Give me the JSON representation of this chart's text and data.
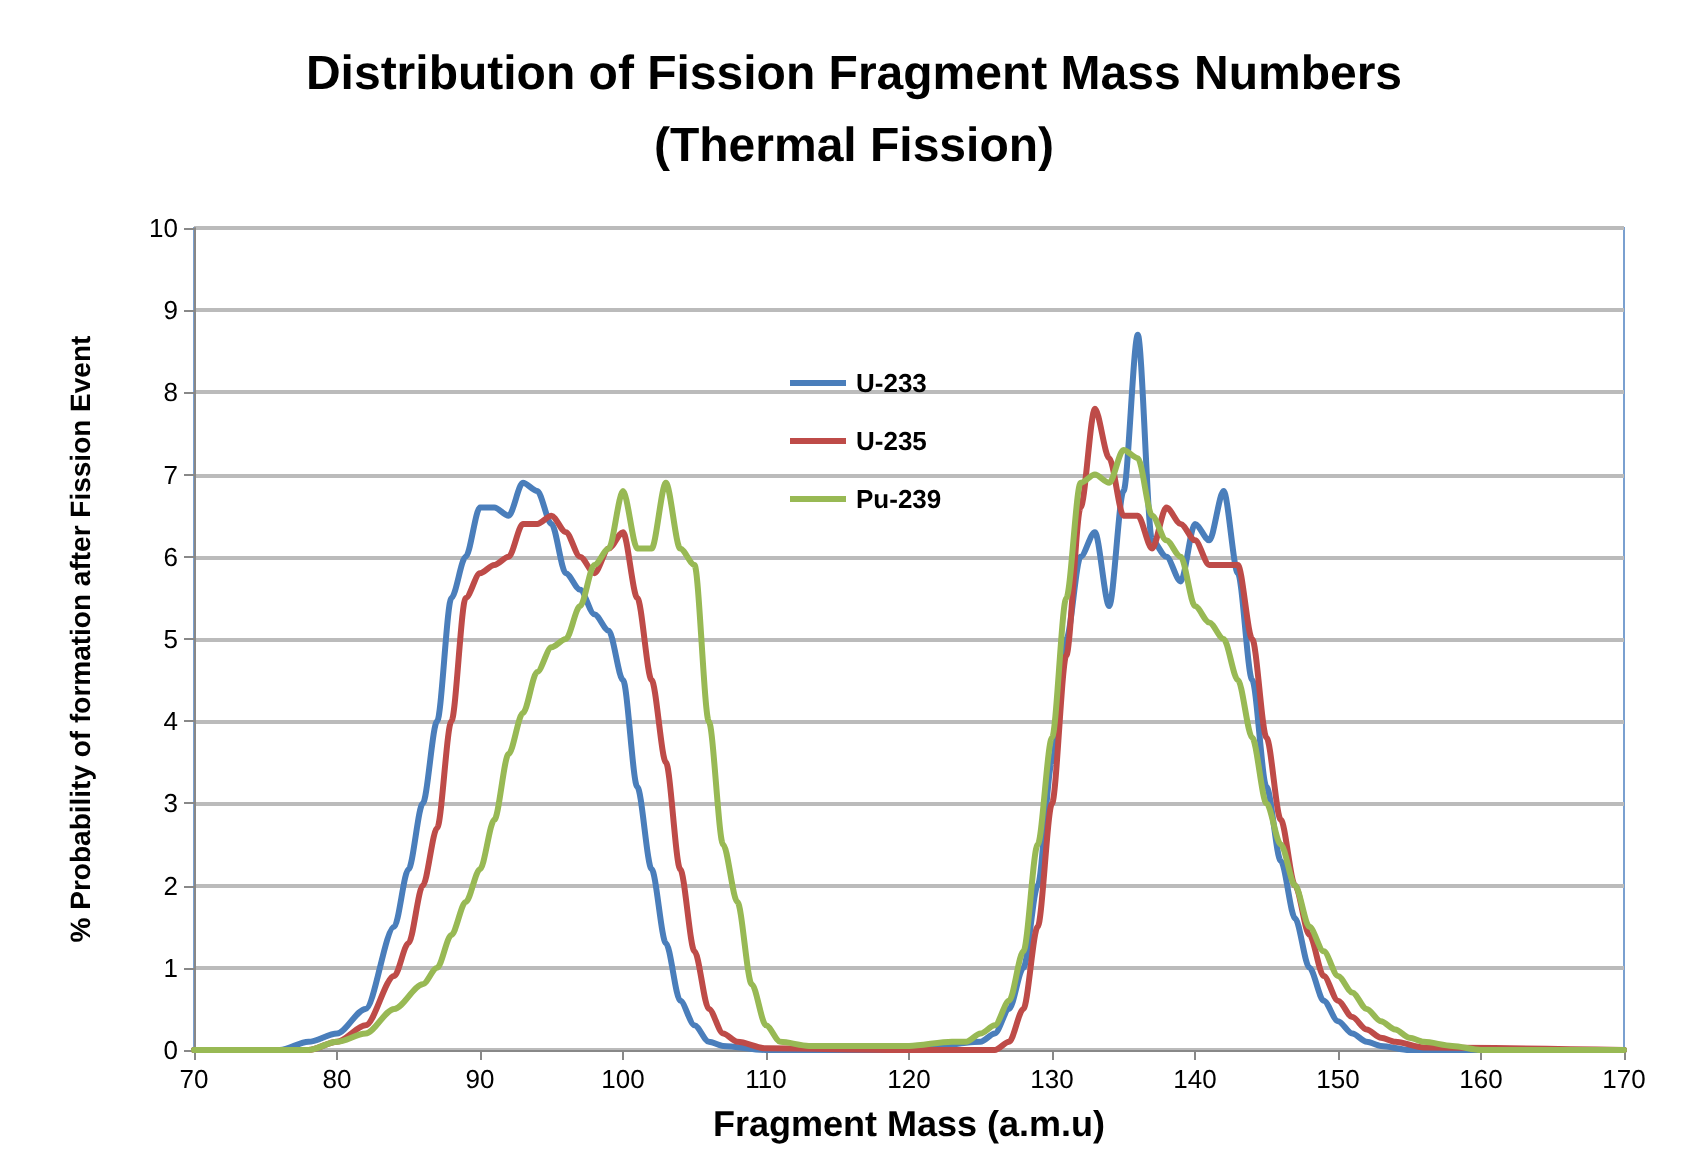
{
  "chart_data": {
    "type": "line",
    "title": "Distribution of Fission Fragment Mass Numbers",
    "subtitle": "(Thermal Fission)",
    "xlabel": "Fragment Mass (a.m.u)",
    "ylabel": "% Probability of formation after Fission Event",
    "xlim": [
      70,
      170
    ],
    "xticks": [
      70,
      80,
      90,
      100,
      110,
      120,
      130,
      140,
      150,
      160,
      170
    ],
    "ylim": [
      0,
      10
    ],
    "yticks": [
      0,
      1,
      2,
      3,
      4,
      5,
      6,
      7,
      8,
      9,
      10
    ],
    "grid": "y",
    "legend": "top",
    "marker": "none",
    "line_style": "solid",
    "series": [
      {
        "name": "U-233",
        "color": "#4a7ebb",
        "x": [
          70,
          76,
          78,
          80,
          82,
          84,
          85,
          86,
          87,
          88,
          89,
          90,
          91,
          92,
          93,
          94,
          95,
          96,
          97,
          98,
          99,
          100,
          101,
          102,
          103,
          104,
          105,
          106,
          107,
          110,
          120,
          125,
          126,
          127,
          128,
          129,
          130,
          131,
          132,
          133,
          134,
          135,
          136,
          137,
          138,
          139,
          140,
          141,
          142,
          143,
          144,
          145,
          146,
          147,
          148,
          149,
          150,
          151,
          152,
          153,
          155,
          170
        ],
        "values": [
          0,
          0,
          0.1,
          0.2,
          0.5,
          1.5,
          2.2,
          3,
          4,
          5.5,
          6,
          6.6,
          6.6,
          6.5,
          6.9,
          6.8,
          6.4,
          5.8,
          5.6,
          5.3,
          5.1,
          4.5,
          3.2,
          2.2,
          1.3,
          0.6,
          0.3,
          0.1,
          0.05,
          0,
          0,
          0.1,
          0.2,
          0.5,
          1,
          2,
          3.5,
          5,
          6,
          6.3,
          5.4,
          6.8,
          8.7,
          6.2,
          6,
          5.7,
          6.4,
          6.2,
          6.8,
          5.8,
          4.5,
          3.2,
          2.3,
          1.6,
          1,
          0.6,
          0.35,
          0.2,
          0.1,
          0.05,
          0,
          0
        ]
      },
      {
        "name": "U-235",
        "color": "#be4b48",
        "x": [
          70,
          78,
          80,
          82,
          84,
          85,
          86,
          87,
          88,
          89,
          90,
          91,
          92,
          93,
          94,
          95,
          96,
          97,
          98,
          99,
          100,
          101,
          102,
          103,
          104,
          105,
          106,
          107,
          108,
          110,
          120,
          126,
          127,
          128,
          129,
          130,
          131,
          132,
          133,
          134,
          135,
          136,
          137,
          138,
          139,
          140,
          141,
          142,
          143,
          144,
          145,
          146,
          147,
          148,
          149,
          150,
          151,
          152,
          153,
          154,
          156,
          170
        ],
        "values": [
          0,
          0,
          0.1,
          0.3,
          0.9,
          1.3,
          2,
          2.7,
          4,
          5.5,
          5.8,
          5.9,
          6,
          6.4,
          6.4,
          6.5,
          6.3,
          6,
          5.8,
          6.1,
          6.3,
          5.5,
          4.5,
          3.5,
          2.2,
          1.2,
          0.5,
          0.2,
          0.1,
          0.02,
          0,
          0,
          0.1,
          0.5,
          1.5,
          3,
          4.8,
          6.6,
          7.8,
          7.2,
          6.5,
          6.5,
          6.1,
          6.6,
          6.4,
          6.2,
          5.9,
          5.9,
          5.9,
          5,
          3.8,
          2.8,
          2,
          1.4,
          0.9,
          0.6,
          0.4,
          0.25,
          0.15,
          0.1,
          0.03,
          0
        ]
      },
      {
        "name": "Pu-239",
        "color": "#98b954",
        "x": [
          70,
          78,
          80,
          82,
          84,
          86,
          87,
          88,
          89,
          90,
          91,
          92,
          93,
          94,
          95,
          96,
          97,
          98,
          99,
          100,
          101,
          102,
          103,
          104,
          105,
          106,
          107,
          108,
          109,
          110,
          111,
          113,
          120,
          123,
          124,
          125,
          126,
          127,
          128,
          129,
          130,
          131,
          132,
          133,
          134,
          135,
          136,
          137,
          138,
          139,
          140,
          141,
          142,
          143,
          144,
          145,
          146,
          147,
          148,
          149,
          150,
          151,
          152,
          153,
          154,
          155,
          156,
          158,
          160,
          170
        ],
        "values": [
          0,
          0,
          0.1,
          0.2,
          0.5,
          0.8,
          1,
          1.4,
          1.8,
          2.2,
          2.8,
          3.6,
          4.1,
          4.6,
          4.9,
          5,
          5.4,
          5.9,
          6.1,
          6.8,
          6.1,
          6.1,
          6.9,
          6.1,
          5.9,
          4,
          2.5,
          1.8,
          0.8,
          0.3,
          0.1,
          0.05,
          0.05,
          0.1,
          0.1,
          0.2,
          0.3,
          0.6,
          1.2,
          2.5,
          3.8,
          5.5,
          6.9,
          7,
          6.9,
          7.3,
          7.2,
          6.5,
          6.2,
          6,
          5.4,
          5.2,
          5,
          4.5,
          3.8,
          3,
          2.5,
          2,
          1.5,
          1.2,
          0.9,
          0.7,
          0.5,
          0.35,
          0.25,
          0.15,
          0.1,
          0.05,
          0,
          0
        ]
      }
    ]
  }
}
